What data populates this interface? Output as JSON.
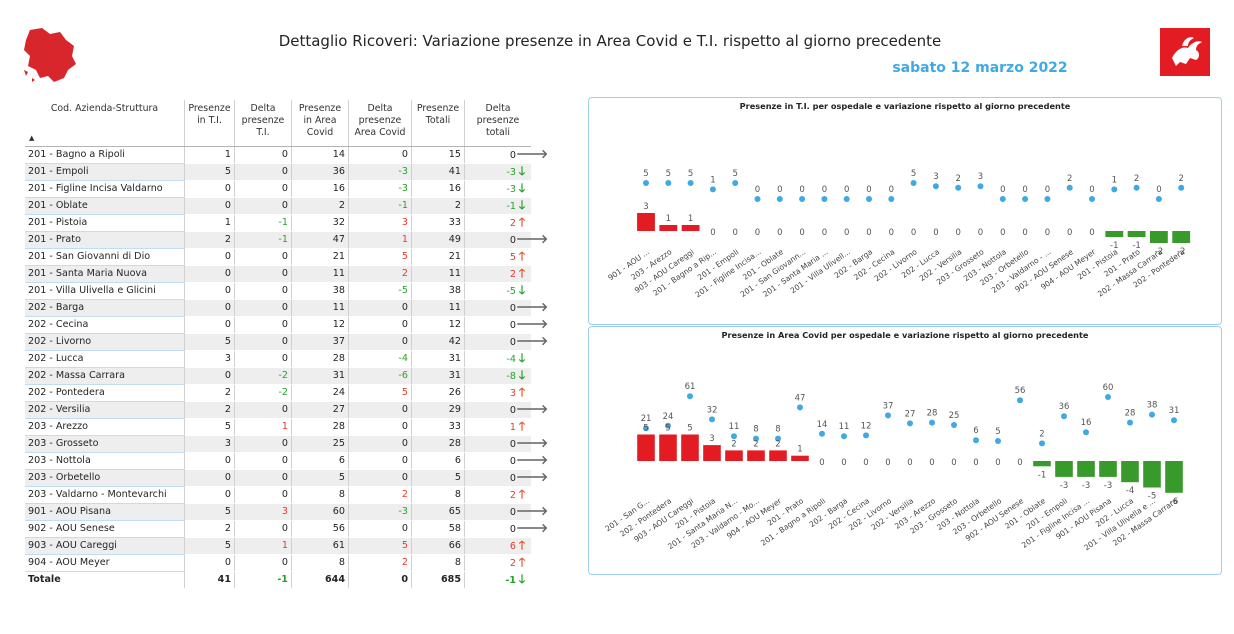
{
  "header": {
    "title": "Dettaglio Ricoveri: Variazione presenze in Area Covid e T.I. rispetto al giorno precedente",
    "date": "sabato 12 marzo 2022"
  },
  "colors": {
    "accent": "#3fa9e5",
    "positive_bar": "#e31c23",
    "negative_bar": "#389a2b",
    "point": "#3fa9e5",
    "up_arrow": "#e8592d",
    "down_arrow": "#27a32a",
    "neutral_arrow": "#666666"
  },
  "icons": {
    "region_map": "tuscany-map-icon",
    "flag": "tuscany-flag-icon"
  },
  "table": {
    "headers": [
      "Cod. Azienda-Struttura",
      "Presenze in T.I.",
      "Delta presenze T.I.",
      "Presenze in Area Covid",
      "Delta presenze Area Covid",
      "Presenze Totali",
      "Delta presenze totali"
    ],
    "sort_indicator": "▲",
    "rows": [
      {
        "name": "201 - Bagno a Ripoli",
        "ti": "1",
        "dti": "0",
        "covid": "14",
        "dcovid": "0",
        "tot": "15",
        "dtot": "0"
      },
      {
        "name": "201 - Empoli",
        "ti": "5",
        "dti": "0",
        "covid": "36",
        "dcovid": "-3",
        "tot": "41",
        "dtot": "-3"
      },
      {
        "name": "201 - Figline Incisa Valdarno",
        "ti": "0",
        "dti": "0",
        "covid": "16",
        "dcovid": "-3",
        "tot": "16",
        "dtot": "-3"
      },
      {
        "name": "201 - Oblate",
        "ti": "0",
        "dti": "0",
        "covid": "2",
        "dcovid": "-1",
        "tot": "2",
        "dtot": "-1"
      },
      {
        "name": "201 - Pistoia",
        "ti": "1",
        "dti": "-1",
        "covid": "32",
        "dcovid": "3",
        "tot": "33",
        "dtot": "2"
      },
      {
        "name": "201 - Prato",
        "ti": "2",
        "dti": "-1",
        "covid": "47",
        "dcovid": "1",
        "tot": "49",
        "dtot": "0"
      },
      {
        "name": "201 - San Giovanni di Dio",
        "ti": "0",
        "dti": "0",
        "covid": "21",
        "dcovid": "5",
        "tot": "21",
        "dtot": "5"
      },
      {
        "name": "201 - Santa Maria Nuova",
        "ti": "0",
        "dti": "0",
        "covid": "11",
        "dcovid": "2",
        "tot": "11",
        "dtot": "2"
      },
      {
        "name": "201 - Villa Ulivella e Glicini",
        "ti": "0",
        "dti": "0",
        "covid": "38",
        "dcovid": "-5",
        "tot": "38",
        "dtot": "-5"
      },
      {
        "name": "202 - Barga",
        "ti": "0",
        "dti": "0",
        "covid": "11",
        "dcovid": "0",
        "tot": "11",
        "dtot": "0"
      },
      {
        "name": "202 - Cecina",
        "ti": "0",
        "dti": "0",
        "covid": "12",
        "dcovid": "0",
        "tot": "12",
        "dtot": "0"
      },
      {
        "name": "202 - Livorno",
        "ti": "5",
        "dti": "0",
        "covid": "37",
        "dcovid": "0",
        "tot": "42",
        "dtot": "0"
      },
      {
        "name": "202 - Lucca",
        "ti": "3",
        "dti": "0",
        "covid": "28",
        "dcovid": "-4",
        "tot": "31",
        "dtot": "-4"
      },
      {
        "name": "202 - Massa Carrara",
        "ti": "0",
        "dti": "-2",
        "covid": "31",
        "dcovid": "-6",
        "tot": "31",
        "dtot": "-8"
      },
      {
        "name": "202 - Pontedera",
        "ti": "2",
        "dti": "-2",
        "covid": "24",
        "dcovid": "5",
        "tot": "26",
        "dtot": "3"
      },
      {
        "name": "202 - Versilia",
        "ti": "2",
        "dti": "0",
        "covid": "27",
        "dcovid": "0",
        "tot": "29",
        "dtot": "0"
      },
      {
        "name": "203 - Arezzo",
        "ti": "5",
        "dti": "1",
        "covid": "28",
        "dcovid": "0",
        "tot": "33",
        "dtot": "1"
      },
      {
        "name": "203 - Grosseto",
        "ti": "3",
        "dti": "0",
        "covid": "25",
        "dcovid": "0",
        "tot": "28",
        "dtot": "0"
      },
      {
        "name": "203 - Nottola",
        "ti": "0",
        "dti": "0",
        "covid": "6",
        "dcovid": "0",
        "tot": "6",
        "dtot": "0"
      },
      {
        "name": "203 - Orbetello",
        "ti": "0",
        "dti": "0",
        "covid": "5",
        "dcovid": "0",
        "tot": "5",
        "dtot": "0"
      },
      {
        "name": "203 - Valdarno - Montevarchi",
        "ti": "0",
        "dti": "0",
        "covid": "8",
        "dcovid": "2",
        "tot": "8",
        "dtot": "2"
      },
      {
        "name": "901 - AOU Pisana",
        "ti": "5",
        "dti": "3",
        "covid": "60",
        "dcovid": "-3",
        "tot": "65",
        "dtot": "0"
      },
      {
        "name": "902 - AOU Senese",
        "ti": "2",
        "dti": "0",
        "covid": "56",
        "dcovid": "0",
        "tot": "58",
        "dtot": "0"
      },
      {
        "name": "903 - AOU Careggi",
        "ti": "5",
        "dti": "1",
        "covid": "61",
        "dcovid": "5",
        "tot": "66",
        "dtot": "6"
      },
      {
        "name": "904 - AOU Meyer",
        "ti": "0",
        "dti": "0",
        "covid": "8",
        "dcovid": "2",
        "tot": "8",
        "dtot": "2"
      }
    ],
    "total": {
      "name": "Totale",
      "ti": "41",
      "dti": "-1",
      "covid": "644",
      "dcovid": "0",
      "tot": "685",
      "dtot": "-1"
    }
  },
  "chart_data": [
    {
      "type": "bar",
      "title": "Presenze in T.I. per ospedale e variazione rispetto al giorno precedente",
      "categories": [
        "901 - AOU ...",
        "203 - Arezzo",
        "903 - AOU Careggi",
        "201 - Bagno a Rip...",
        "201 - Empoli",
        "201 - Figline Incisa...",
        "201 - Oblate",
        "201 - San Giovann...",
        "201 - Santa Maria ...",
        "201 - Villa Ulivell...",
        "202 - Barga",
        "202 - Cecina",
        "202 - Livorno",
        "202 - Lucca",
        "202 - Versilia",
        "203 - Grosseto",
        "203 - Nottola",
        "203 - Orbetello",
        "203 - Valdarno - ...",
        "902 - AOU Senese",
        "904 - AOU Meyer",
        "201 - Pistoia",
        "201 - Prato",
        "202 - Massa Carrara",
        "202 - Pontedera"
      ],
      "series": [
        {
          "name": "Presenze in T.I.",
          "kind": "point",
          "values": [
            5,
            5,
            5,
            1,
            5,
            0,
            0,
            0,
            0,
            0,
            0,
            0,
            5,
            3,
            2,
            3,
            0,
            0,
            0,
            2,
            0,
            1,
            2,
            0,
            2
          ]
        },
        {
          "name": "Delta presenze T.I.",
          "kind": "bar",
          "values": [
            3,
            1,
            1,
            0,
            0,
            0,
            0,
            0,
            0,
            0,
            0,
            0,
            0,
            0,
            0,
            0,
            0,
            0,
            0,
            0,
            0,
            -1,
            -1,
            -2,
            -2
          ]
        }
      ],
      "grid": false,
      "legend": "none"
    },
    {
      "type": "bar",
      "title": "Presenze in Area Covid per ospedale e variazione rispetto al giorno precedente",
      "categories": [
        "201 - San G...",
        "202 - Pontedera",
        "903 - AOU Careggi",
        "201 - Pistoia",
        "201 - Santa Maria N...",
        "203 - Valdarno - Mo...",
        "904 - AOU Meyer",
        "201 - Prato",
        "201 - Bagno a Ripoli",
        "202 - Barga",
        "202 - Cecina",
        "202 - Livorno",
        "202 - Versilia",
        "203 - Arezzo",
        "203 - Grosseto",
        "203 - Nottola",
        "203 - Orbetello",
        "902 - AOU Senese",
        "201 - Oblate",
        "201 - Empoli",
        "201 - Figline Incisa ...",
        "901 - AOU Pisana",
        "202 - Lucca",
        "201 - Villa Ulivella e ...",
        "202 - Massa Carrara"
      ],
      "series": [
        {
          "name": "Presenze in Area Covid",
          "kind": "point",
          "values": [
            21,
            24,
            61,
            32,
            11,
            8,
            8,
            47,
            14,
            11,
            12,
            37,
            27,
            28,
            25,
            6,
            5,
            56,
            2,
            36,
            16,
            60,
            28,
            38,
            31
          ]
        },
        {
          "name": "Delta presenze Area Covid",
          "kind": "bar",
          "values": [
            5,
            5,
            5,
            3,
            2,
            2,
            2,
            1,
            0,
            0,
            0,
            0,
            0,
            0,
            0,
            0,
            0,
            0,
            -1,
            -3,
            -3,
            -3,
            -4,
            -5,
            -6
          ]
        }
      ],
      "grid": false,
      "legend": "none"
    }
  ]
}
